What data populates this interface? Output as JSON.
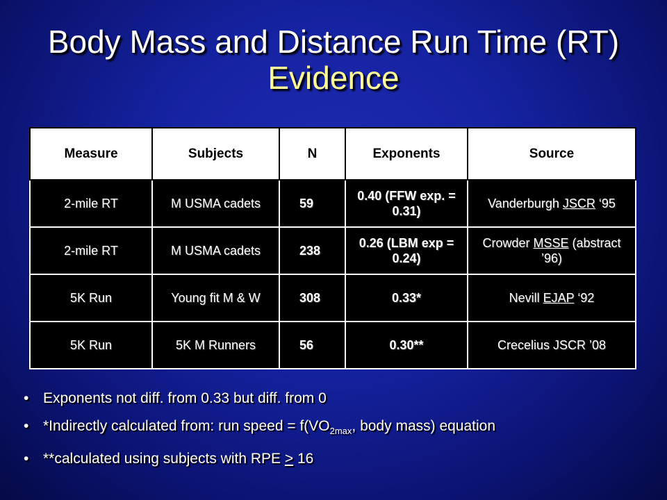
{
  "title": {
    "line1": "Body Mass and Distance Run Time (RT)",
    "line2": "Evidence"
  },
  "table": {
    "headers": [
      "Measure",
      "Subjects",
      "N",
      "Exponents",
      "Source"
    ],
    "rows": [
      {
        "measure": "2-mile RT",
        "subjects": "M USMA cadets",
        "n": "59",
        "exponents": "0.40 (FFW exp. = 0.31)",
        "source_pre": "Vanderburgh ",
        "source_u": "JSCR",
        "source_post": " ‘95"
      },
      {
        "measure": "2-mile RT",
        "subjects": "M USMA cadets",
        "n": "238",
        "exponents": "0.26 (LBM exp = 0.24)",
        "source_pre": "Crowder ",
        "source_u": "MSSE",
        "source_post": " (abstract ’96)"
      },
      {
        "measure": "5K Run",
        "subjects": "Young fit M & W",
        "n": "308",
        "exponents": "0.33*",
        "source_pre": "Nevill ",
        "source_u": "EJAP",
        "source_post": " ‘92"
      },
      {
        "measure": "5K Run",
        "subjects": "5K M Runners",
        "n": "56",
        "exponents": "0.30**",
        "source_pre": "Crecelius JSCR ’08",
        "source_u": "",
        "source_post": ""
      }
    ]
  },
  "bullets": {
    "b1": "Exponents not diff. from 0.33 but diff. from 0",
    "b2_pre": "*Indirectly calculated from:   run speed = f(VO",
    "b2_sub": "2max",
    "b2_post": ", body mass) equation",
    "b3_pre": "**calculated using subjects with RPE ",
    "b3_u": ">",
    "b3_post": " 16",
    "marker": "•"
  }
}
